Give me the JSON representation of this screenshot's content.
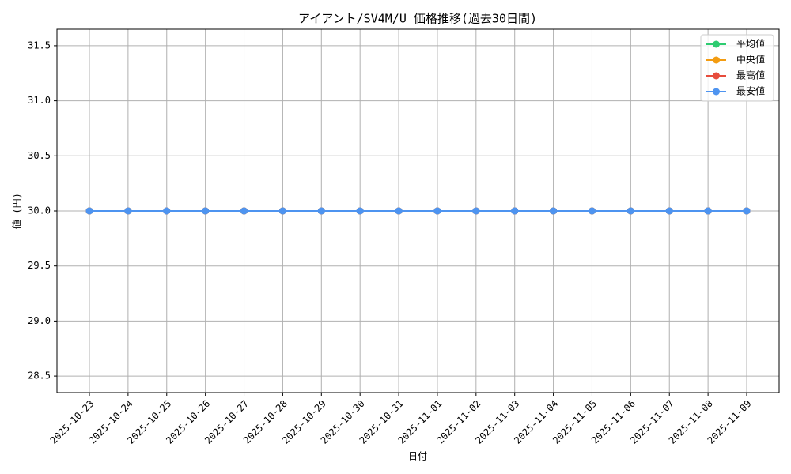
{
  "chart_data": {
    "type": "line",
    "title": "アイアント/SV4M/U 価格推移(過去30日間)",
    "x_label": "日付",
    "y_label": "値 (円)",
    "categories": [
      "2025-10-23",
      "2025-10-24",
      "2025-10-25",
      "2025-10-26",
      "2025-10-27",
      "2025-10-28",
      "2025-10-29",
      "2025-10-30",
      "2025-10-31",
      "2025-11-01",
      "2025-11-02",
      "2025-11-03",
      "2025-11-04",
      "2025-11-05",
      "2025-11-06",
      "2025-11-07",
      "2025-11-08",
      "2025-11-09"
    ],
    "series": [
      {
        "name": "平均値",
        "color": "#2ecc71",
        "values": [
          30,
          30,
          30,
          30,
          30,
          30,
          30,
          30,
          30,
          30,
          30,
          30,
          30,
          30,
          30,
          30,
          30,
          30
        ]
      },
      {
        "name": "中央値",
        "color": "#f39c12",
        "values": [
          30,
          30,
          30,
          30,
          30,
          30,
          30,
          30,
          30,
          30,
          30,
          30,
          30,
          30,
          30,
          30,
          30,
          30
        ]
      },
      {
        "name": "最高値",
        "color": "#e74c3c",
        "values": [
          30,
          30,
          30,
          30,
          30,
          30,
          30,
          30,
          30,
          30,
          30,
          30,
          30,
          30,
          30,
          30,
          30,
          30
        ]
      },
      {
        "name": "最安値",
        "color": "#4e94f0",
        "values": [
          30,
          30,
          30,
          30,
          30,
          30,
          30,
          30,
          30,
          30,
          30,
          30,
          30,
          30,
          30,
          30,
          30,
          30
        ]
      }
    ],
    "ylim": [
      28.35,
      31.65
    ],
    "yticks": [
      28.5,
      {
        "value": 29,
        "label": "29.0"
      },
      29.5,
      {
        "value": 30,
        "label": "30.0"
      },
      30.5,
      {
        "value": 31,
        "label": "31.0"
      },
      31.5
    ],
    "grid": true,
    "legend": "upper right"
  }
}
